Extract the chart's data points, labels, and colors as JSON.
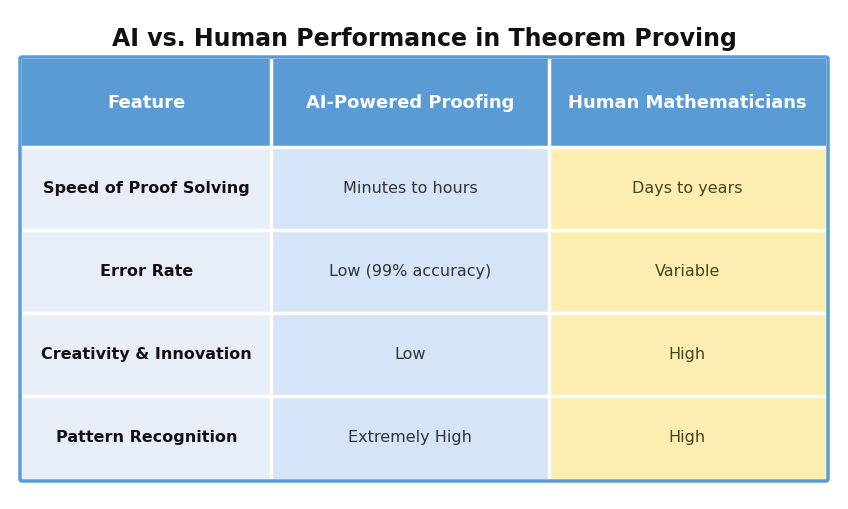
{
  "title": "AI vs. Human Performance in Theorem Proving",
  "title_fontsize": 17,
  "title_fontweight": "bold",
  "columns": [
    "Feature",
    "AI-Powered Proofing",
    "Human Mathematicians"
  ],
  "rows": [
    [
      "Speed of Proof Solving",
      "Minutes to hours",
      "Days to years"
    ],
    [
      "Error Rate",
      "Low (99% accuracy)",
      "Variable"
    ],
    [
      "Creativity & Innovation",
      "Low",
      "High"
    ],
    [
      "Pattern Recognition",
      "Extremely High",
      "High"
    ]
  ],
  "header_bg_color": "#5B9BD5",
  "header_text_color": "#FFFFFF",
  "col1_bg": "#E8EEF8",
  "col2_bg": "#D6E4F7",
  "col3_bg": "#FDEDB0",
  "col2_text_color": "#333333",
  "col3_text_color": "#444422",
  "feature_text_color": "#111111",
  "row_divider_color": "#FFFFFF",
  "col_divider_color": "#FFFFFF",
  "outer_border_color": "#5B9BD5",
  "background_color": "#FFFFFF",
  "cell_fontsize": 11.5,
  "header_fontsize": 13
}
